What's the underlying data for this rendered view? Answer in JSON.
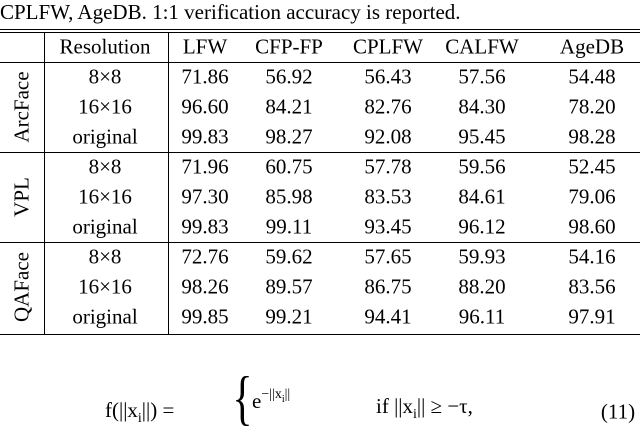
{
  "caption": "CPLFW, AgeDB. 1:1 verification accuracy is reported.",
  "table": {
    "header": [
      "Resolution",
      "LFW",
      "CFP-FP",
      "CPLFW",
      "CALFW",
      "AgeDB"
    ],
    "groups": [
      {
        "name": "ArcFace",
        "rows": [
          [
            "8×8",
            "71.86",
            "56.92",
            "56.43",
            "57.56",
            "54.48"
          ],
          [
            "16×16",
            "96.60",
            "84.21",
            "82.76",
            "84.30",
            "78.20"
          ],
          [
            "original",
            "99.83",
            "98.27",
            "92.08",
            "95.45",
            "98.28"
          ]
        ]
      },
      {
        "name": "VPL",
        "rows": [
          [
            "8×8",
            "71.96",
            "60.75",
            "57.78",
            "59.56",
            "52.45"
          ],
          [
            "16×16",
            "97.30",
            "85.98",
            "83.53",
            "84.61",
            "79.06"
          ],
          [
            "original",
            "99.83",
            "99.11",
            "93.45",
            "96.12",
            "98.60"
          ]
        ]
      },
      {
        "name": "QAFace",
        "rows": [
          [
            "8×8",
            "72.76",
            "59.62",
            "57.65",
            "59.93",
            "54.16"
          ],
          [
            "16×16",
            "98.26",
            "89.57",
            "86.75",
            "88.20",
            "83.56"
          ],
          [
            "original",
            "99.85",
            "99.21",
            "94.41",
            "96.11",
            "97.91"
          ]
        ]
      }
    ]
  },
  "equation": {
    "lhs": [
      "f(||x",
      "i",
      "||) ="
    ],
    "case": [
      "e",
      "−||x",
      "i",
      "||"
    ],
    "condition": [
      "if ||x",
      "i",
      "|| ≥ −τ,"
    ],
    "number": "(11)"
  }
}
